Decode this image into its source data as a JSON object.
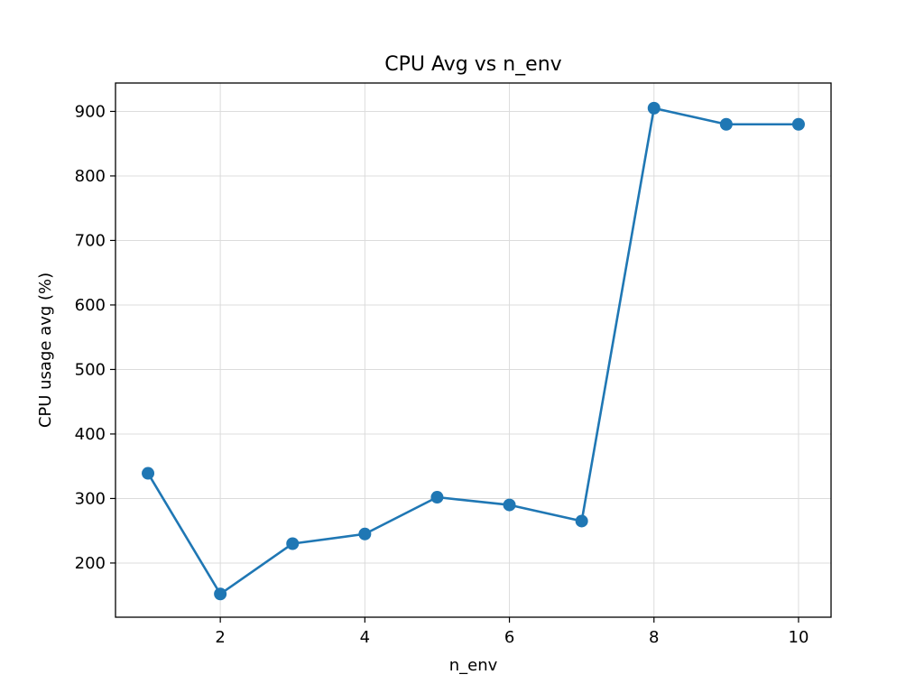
{
  "chart_data": {
    "type": "line",
    "title": "CPU Avg vs n_env",
    "xlabel": "n_env",
    "ylabel": "CPU usage avg (%)",
    "xlim": [
      0.55,
      10.45
    ],
    "ylim": [
      116,
      944
    ],
    "xticks": [
      2,
      4,
      6,
      8,
      10
    ],
    "yticks": [
      200,
      300,
      400,
      500,
      600,
      700,
      800,
      900
    ],
    "grid": true,
    "legend": "none",
    "series": [
      {
        "color": "#1f77b4",
        "marker": "circle",
        "x": [
          1,
          2,
          3,
          4,
          5,
          6,
          7,
          8,
          9,
          10
        ],
        "y": [
          339,
          152,
          230,
          245,
          302,
          290,
          265,
          905,
          880,
          880
        ]
      }
    ]
  }
}
